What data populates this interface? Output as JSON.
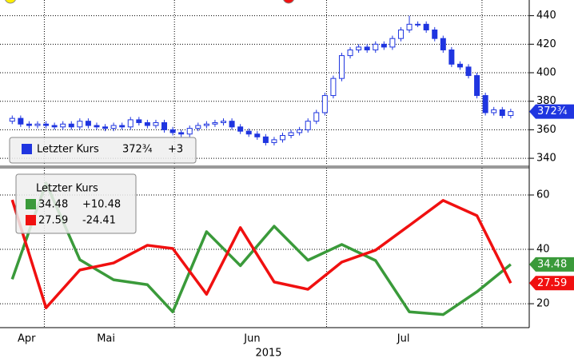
{
  "chart_data": [
    {
      "type": "candlestick",
      "color": "#1f35e0",
      "x": [
        0,
        1,
        2,
        3,
        4,
        5,
        6,
        7,
        8,
        9,
        10,
        11,
        12,
        13,
        14,
        15,
        16,
        17,
        18,
        19,
        20,
        21,
        22,
        23,
        24,
        25,
        26,
        27,
        28,
        29,
        30,
        31,
        32,
        33,
        34,
        35,
        36,
        37,
        38,
        39,
        40,
        41,
        42,
        43,
        44,
        45,
        46,
        47,
        48,
        49,
        50,
        51,
        52,
        53,
        54,
        55,
        56,
        57,
        58,
        59
      ],
      "open": [
        366,
        368,
        364,
        363,
        364,
        363,
        362,
        364,
        362,
        366,
        363,
        362,
        361,
        363,
        362,
        367,
        365,
        363,
        365,
        360,
        358,
        357,
        361,
        363,
        364,
        365,
        366,
        362,
        359,
        357,
        355,
        351,
        353,
        356,
        358,
        360,
        366,
        372,
        384,
        396,
        412,
        416,
        418,
        416,
        420,
        418,
        424,
        430,
        434,
        434,
        430,
        424,
        416,
        406,
        404,
        398,
        384,
        372,
        374,
        370
      ],
      "high": [
        370,
        370,
        366,
        366,
        366,
        365,
        366,
        366,
        368,
        368,
        365,
        364,
        365,
        365,
        369,
        369,
        367,
        367,
        367,
        362,
        360,
        363,
        365,
        366,
        367,
        368,
        368,
        364,
        361,
        359,
        357,
        355,
        358,
        360,
        362,
        368,
        374,
        386,
        398,
        414,
        418,
        420,
        420,
        422,
        422,
        426,
        432,
        440,
        436,
        436,
        432,
        426,
        418,
        408,
        406,
        400,
        386,
        376,
        376,
        374.75
      ],
      "low": [
        364,
        362,
        361,
        361,
        361,
        360,
        360,
        360,
        360,
        361,
        360,
        359,
        359,
        360,
        360,
        363,
        361,
        361,
        358,
        356,
        355,
        355,
        359,
        361,
        362,
        363,
        360,
        357,
        355,
        353,
        349,
        349,
        351,
        354,
        356,
        358,
        364,
        370,
        382,
        394,
        410,
        414,
        414,
        414,
        416,
        416,
        422,
        428,
        432,
        428,
        422,
        414,
        404,
        402,
        396,
        382,
        370,
        370,
        368,
        368
      ],
      "close": [
        368,
        364,
        363,
        364,
        363,
        362,
        364,
        362,
        366,
        363,
        362,
        361,
        363,
        362,
        367,
        365,
        363,
        365,
        360,
        358,
        357,
        361,
        363,
        364,
        365,
        366,
        362,
        359,
        357,
        355,
        351,
        353,
        356,
        358,
        360,
        366,
        372,
        384,
        396,
        412,
        416,
        418,
        416,
        420,
        418,
        424,
        430,
        434,
        434,
        430,
        424,
        416,
        406,
        404,
        398,
        384,
        372,
        374,
        370,
        372.75
      ],
      "value_labels": {
        "59": "372¾"
      },
      "legend": {
        "title": "Letzter Kurs",
        "change": {
          "value": 3,
          "label": "+3"
        }
      },
      "xlim": [
        -0.5,
        61
      ],
      "ylim": [
        335,
        451
      ],
      "yticks": [
        340,
        360,
        380,
        400,
        420,
        440
      ],
      "xgrid": [
        3.8,
        19.2,
        37.2,
        55.6
      ],
      "grid": true
    },
    {
      "type": "line",
      "x": [
        0,
        4,
        8,
        12,
        16,
        19,
        23,
        27,
        31,
        35,
        39,
        43,
        47,
        51,
        55,
        59
      ],
      "series": [
        {
          "color": "#3a9a3a",
          "values": [
            29,
            64.4,
            36.2,
            28.8,
            27,
            17,
            46.5,
            34,
            48.5,
            36,
            41.8,
            35.9,
            17,
            16,
            24.4,
            34.48
          ],
          "change": {
            "value": 10.48,
            "label": "+10.48"
          }
        },
        {
          "color": "#f01010",
          "values": [
            58.2,
            18.5,
            32.4,
            35,
            41.5,
            40.3,
            23.5,
            48,
            28,
            25.3,
            35.3,
            39.7,
            48.8,
            58,
            52.4,
            27.59
          ],
          "change": -24.41
        }
      ],
      "legend_title": "Letzter Kurs",
      "xlim": [
        -0.5,
        61
      ],
      "ylim": [
        11.2,
        70
      ],
      "yticks": [
        20,
        40,
        60
      ],
      "xgrid": [
        3.8,
        19.2,
        37.2,
        55.6
      ],
      "grid": true,
      "xticks": [
        {
          "value": 1.7,
          "label": "Apr"
        },
        {
          "value": 11.1,
          "label": "Mai"
        },
        {
          "value": 28.4,
          "label": "Jun"
        },
        {
          "value": 46.3,
          "label": "Jul"
        }
      ],
      "xlabel": "2015"
    }
  ]
}
